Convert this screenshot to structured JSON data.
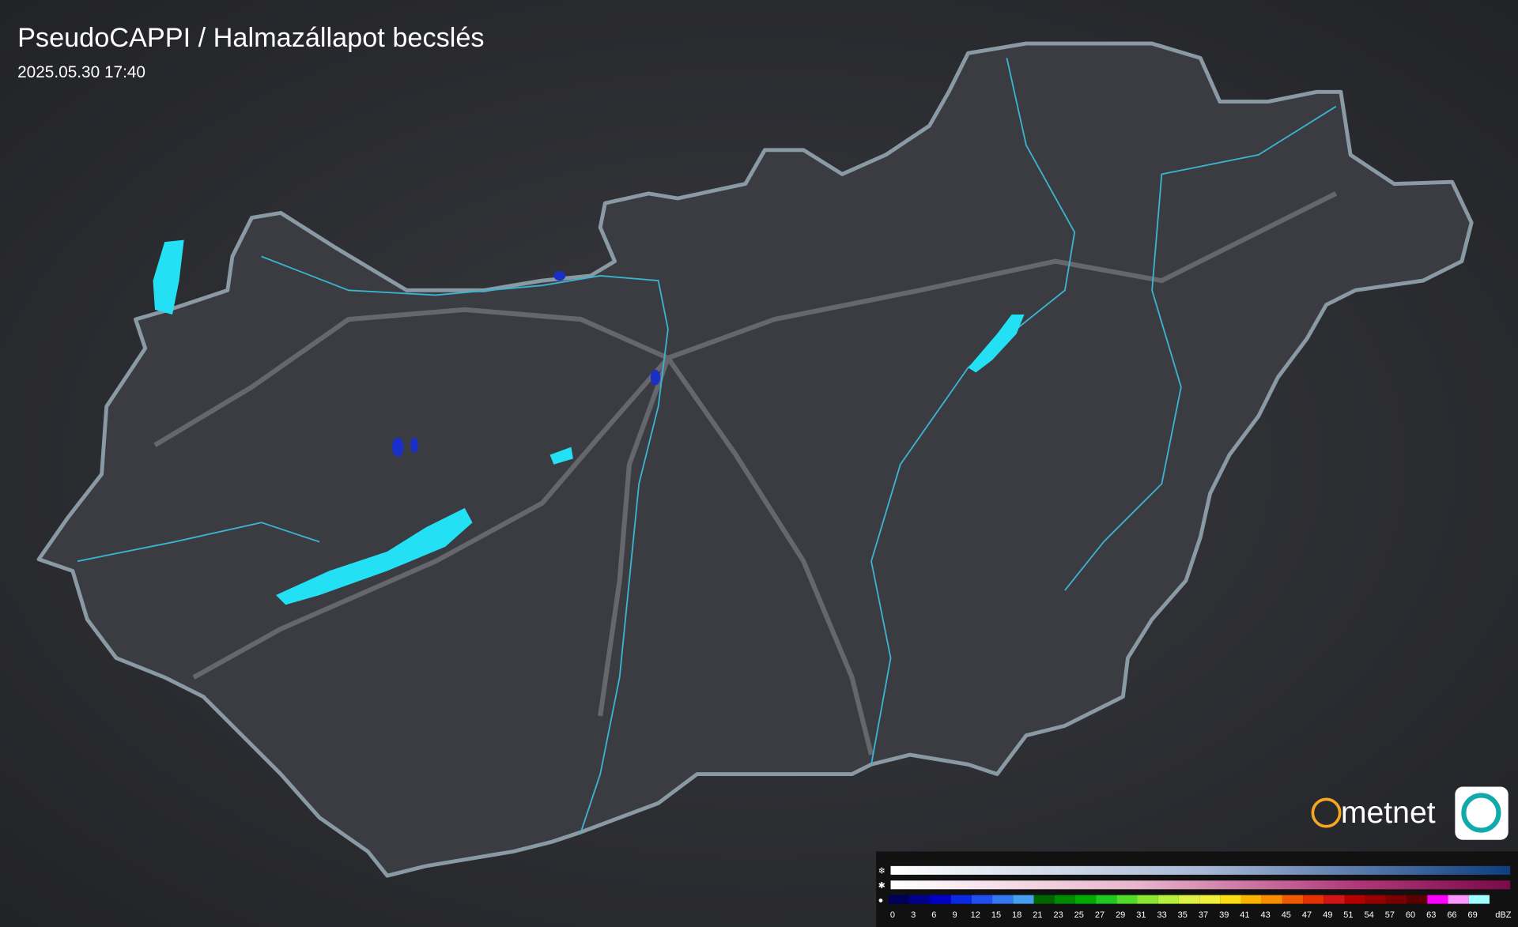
{
  "title": "PseudoCAPPI  / Halmazállapot becslés",
  "timestamp": "2025.05.30 17:40",
  "logo": "metnet",
  "legend": {
    "rain_labels": [
      "0",
      "3",
      "6",
      "9",
      "12",
      "15",
      "18",
      "21",
      "23",
      "25",
      "27",
      "29",
      "31",
      "33",
      "35",
      "37",
      "39",
      "41",
      "43",
      "45",
      "47",
      "49",
      "51",
      "54",
      "57",
      "60",
      "63",
      "66",
      "69"
    ],
    "rain_colors": [
      "#00005a",
      "#00008c",
      "#0000c8",
      "#0a28e6",
      "#1e50f0",
      "#3278f0",
      "#46a0f0",
      "#006400",
      "#008c00",
      "#00aa00",
      "#1ec81e",
      "#50dc28",
      "#8ce632",
      "#b4f03c",
      "#dcf046",
      "#f0f03c",
      "#fadc14",
      "#fab400",
      "#fa8c00",
      "#f05a00",
      "#e63200",
      "#d21414",
      "#b40000",
      "#960000",
      "#780000",
      "#5a0000",
      "#ff00ff",
      "#ff96ff",
      "#a0ffff"
    ],
    "unit": "dBZ"
  }
}
